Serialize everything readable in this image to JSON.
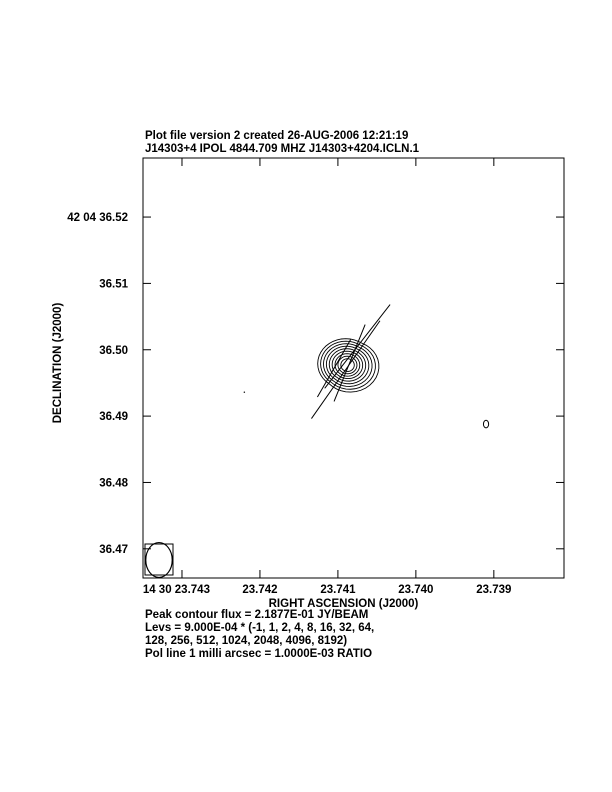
{
  "header": {
    "line1": "Plot file version 2  created 26-AUG-2006 12:21:19",
    "line2": "J14303+4  IPOL  4844.709 MHZ  J14303+4204.ICLN.1"
  },
  "footer": {
    "peak": "Peak contour flux =  2.1877E-01 JY/BEAM",
    "levs1": "Levs = 9.000E-04 * (-1, 1, 2, 4, 8, 16, 32, 64,",
    "levs2": "128, 256, 512, 1024, 2048, 4096, 8192)",
    "pol": "Pol line 1 milli arcsec =  1.0000E-03 RATIO"
  },
  "chart_data": {
    "type": "contour",
    "xlabel": "RIGHT ASCENSION (J2000)",
    "ylabel": "DECLINATION (J2000)",
    "x_ticks": [
      {
        "value": 23.743,
        "label": "14 30 23.743"
      },
      {
        "value": 23.742,
        "label": "23.742"
      },
      {
        "value": 23.741,
        "label": "23.741"
      },
      {
        "value": 23.74,
        "label": "23.740"
      },
      {
        "value": 23.739,
        "label": "23.739"
      }
    ],
    "y_ticks": [
      {
        "value": 36.52,
        "label": "42 04 36.52"
      },
      {
        "value": 36.51,
        "label": "36.51"
      },
      {
        "value": 36.5,
        "label": "36.50"
      },
      {
        "value": 36.49,
        "label": "36.49"
      },
      {
        "value": 36.48,
        "label": "36.48"
      },
      {
        "value": 36.47,
        "label": "36.47"
      }
    ],
    "xlim": [
      23.7435,
      23.7381
    ],
    "ylim": [
      36.4656,
      36.5289
    ],
    "x_reversed": true,
    "source_center": {
      "ra": 23.7409,
      "dec": 36.4979
    },
    "contour_levels_count": 9,
    "polarization_vectors": [
      {
        "ra": 23.74085,
        "dec": 36.498,
        "length_mas": 12.5,
        "angle_deg": 22
      },
      {
        "ra": 23.7409,
        "dec": 36.497,
        "length_mas": 18.0,
        "angle_deg": 35
      },
      {
        "ra": 23.74075,
        "dec": 36.5005,
        "length_mas": 16.0,
        "angle_deg": 38
      },
      {
        "ra": 23.74105,
        "dec": 36.4972,
        "length_mas": 10.0,
        "angle_deg": 30
      }
    ],
    "secondary_contour": {
      "ra": 23.7391,
      "dec": 36.4888
    },
    "restoring_beam": {
      "major_mas": 2.5,
      "minor_mas": 1.9,
      "pa_deg": 0
    }
  }
}
